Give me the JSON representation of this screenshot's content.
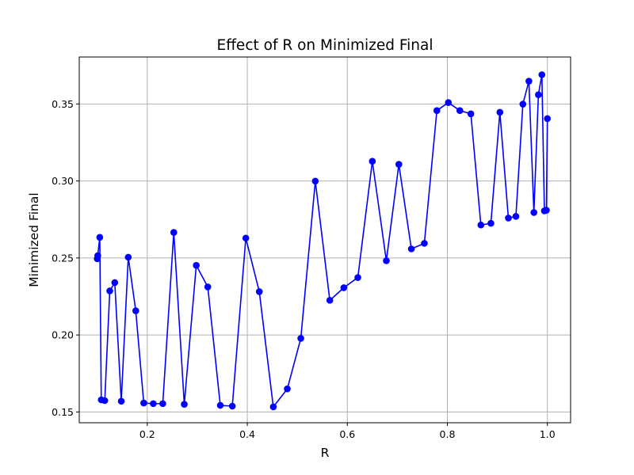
{
  "chart_data": {
    "type": "line",
    "title": "Effect of R on Minimized Final",
    "xlabel": "R",
    "ylabel": "Minimized Final",
    "xlim": [
      0.064,
      1.0464
    ],
    "ylim": [
      0.143,
      0.3805
    ],
    "xticks": [
      "0.2",
      "0.4",
      "0.6",
      "0.8",
      "1.0"
    ],
    "yticks": [
      "0.15",
      "0.20",
      "0.25",
      "0.30",
      "0.35"
    ],
    "grid": true,
    "colors": {
      "line": "#0000ff",
      "marker": "#0000ff",
      "grid": "#b0b0b0"
    },
    "series": [
      {
        "x": [
          0.1,
          0.101,
          0.105,
          0.108,
          0.115,
          0.125,
          0.135,
          0.148,
          0.162,
          0.177,
          0.193,
          0.212,
          0.231,
          0.253,
          0.274,
          0.298,
          0.321,
          0.346,
          0.37,
          0.397,
          0.424,
          0.452,
          0.48,
          0.507,
          0.536,
          0.565,
          0.593,
          0.621,
          0.65,
          0.678,
          0.703,
          0.728,
          0.754,
          0.779,
          0.802,
          0.825,
          0.847,
          0.867,
          0.887,
          0.905,
          0.922,
          0.937,
          0.951,
          0.963,
          0.973,
          0.982,
          0.989,
          0.994,
          0.998,
          1.0
        ],
        "y": [
          0.2495,
          0.2515,
          0.2634,
          0.1579,
          0.1574,
          0.2286,
          0.234,
          0.157,
          0.2505,
          0.2157,
          0.1558,
          0.1554,
          0.1554,
          0.2666,
          0.155,
          0.2452,
          0.2312,
          0.1543,
          0.1538,
          0.2629,
          0.2281,
          0.1533,
          0.165,
          0.1978,
          0.2999,
          0.2225,
          0.2307,
          0.2373,
          0.3128,
          0.2482,
          0.3108,
          0.2559,
          0.2595,
          0.3457,
          0.3509,
          0.3457,
          0.3436,
          0.2714,
          0.2725,
          0.3446,
          0.2759,
          0.277,
          0.3499,
          0.3648,
          0.2795,
          0.356,
          0.369,
          0.2806,
          0.281,
          0.3405
        ]
      }
    ]
  }
}
